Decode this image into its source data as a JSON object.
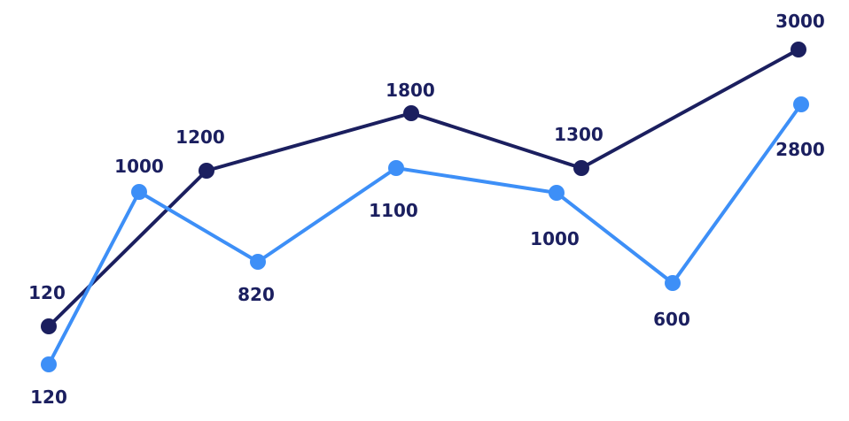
{
  "chart_data": {
    "type": "line",
    "title": "",
    "xlabel": "",
    "ylabel": "",
    "grid": false,
    "axes_visible": false,
    "legend": "none",
    "series": [
      {
        "color": "#1b1f5f",
        "values": [
          120,
          1200,
          1800,
          1300,
          3000
        ],
        "labels": [
          "120",
          "1200",
          "1800",
          "1300",
          "3000"
        ]
      },
      {
        "color": "#3d8ff7",
        "values": [
          120,
          1000,
          820,
          1100,
          1000,
          600,
          2800
        ],
        "labels": [
          "120",
          "1000",
          "820",
          "1100",
          "1000",
          "600",
          "2800"
        ]
      }
    ],
    "label_color": "#1b1f5f"
  }
}
